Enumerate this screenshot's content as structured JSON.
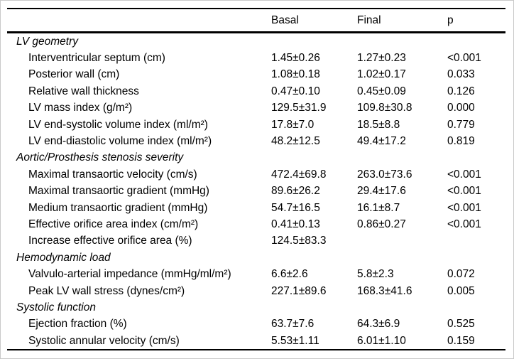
{
  "page": {
    "background": "#ffffff",
    "frame_color": "#c9c9c9",
    "rule_color": "#000000",
    "text_color": "#000000"
  },
  "table": {
    "columns": [
      {
        "key": "label",
        "label": ""
      },
      {
        "key": "basal",
        "label": "Basal"
      },
      {
        "key": "final",
        "label": "Final"
      },
      {
        "key": "p",
        "label": "p"
      }
    ],
    "sections": [
      {
        "title": "LV geometry",
        "rows": [
          {
            "label": "Interventricular septum (cm)",
            "basal": "1.45±0.26",
            "final": "1.27±0.23",
            "p": "<0.001"
          },
          {
            "label": "Posterior wall (cm)",
            "basal": "1.08±0.18",
            "final": "1.02±0.17",
            "p": "0.033"
          },
          {
            "label": "Relative wall thickness",
            "basal": "0.47±0.10",
            "final": "0.45±0.09",
            "p": "0.126"
          },
          {
            "label": "LV mass index (g/m²)",
            "basal": "129.5±31.9",
            "final": "109.8±30.8",
            "p": "0.000"
          },
          {
            "label": "LV end-systolic volume index (ml/m²)",
            "basal": "17.8±7.0",
            "final": "18.5±8.8",
            "p": "0.779"
          },
          {
            "label": "LV end-diastolic volume index (ml/m²)",
            "basal": "48.2±12.5",
            "final": "49.4±17.2",
            "p": "0.819"
          }
        ]
      },
      {
        "title": "Aortic/Prosthesis stenosis severity",
        "rows": [
          {
            "label": "Maximal transaortic velocity (cm/s)",
            "basal": "472.4±69.8",
            "final": "263.0±73.6",
            "p": "<0.001"
          },
          {
            "label": "Maximal transaortic gradient (mmHg)",
            "basal": "89.6±26.2",
            "final": "29.4±17.6",
            "p": "<0.001"
          },
          {
            "label": "Medium transaortic gradient (mmHg)",
            "basal": "54.7±16.5",
            "final": "16.1±8.7",
            "p": "<0.001"
          },
          {
            "label": "Effective orifice area index (cm/m²)",
            "basal": "0.41±0.13",
            "final": "0.86±0.27",
            "p": "<0.001"
          },
          {
            "label": "Increase effective orifice area (%)",
            "basal": "124.5±83.3",
            "final": "",
            "p": ""
          }
        ]
      },
      {
        "title": "Hemodynamic load",
        "rows": [
          {
            "label": "Valvulo-arterial impedance (mmHg/ml/m²)",
            "basal": "6.6±2.6",
            "final": "5.8±2.3",
            "p": "0.072"
          },
          {
            "label": "Peak LV wall stress (dynes/cm²)",
            "basal": "227.1±89.6",
            "final": "168.3±41.6",
            "p": "0.005"
          }
        ]
      },
      {
        "title": "Systolic function",
        "rows": [
          {
            "label": "Ejection fraction (%)",
            "basal": "63.7±7.6",
            "final": "64.3±6.9",
            "p": "0.525"
          },
          {
            "label": "Systolic annular velocity (cm/s)",
            "basal": "5.53±1.11",
            "final": "6.01±1.10",
            "p": "0.159"
          }
        ]
      }
    ]
  }
}
